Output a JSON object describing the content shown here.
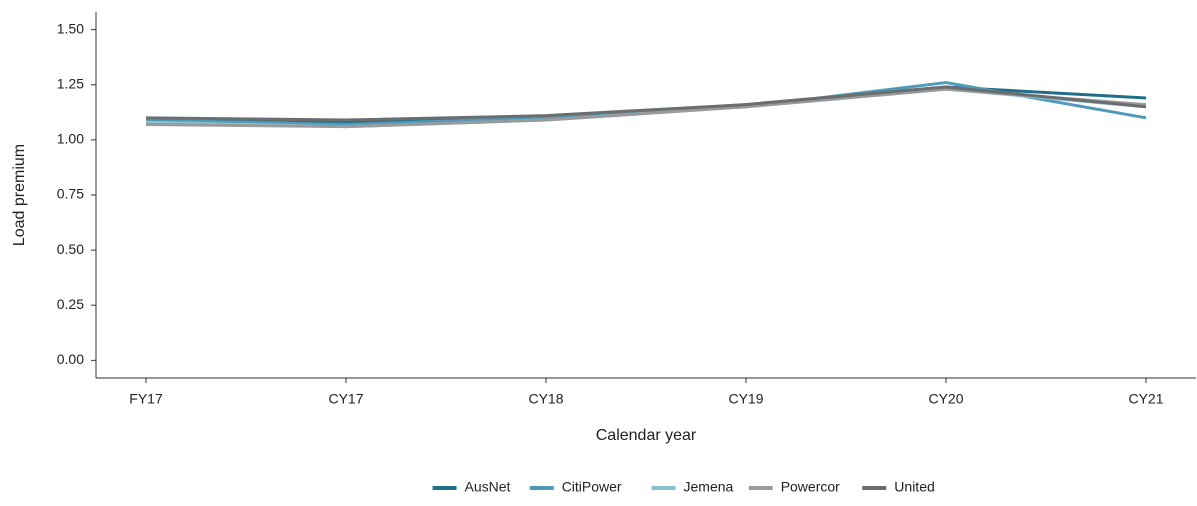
{
  "chart_data": {
    "type": "line",
    "x_label": "Calendar year",
    "y_label": "Load premium",
    "categories": [
      "FY17",
      "CY17",
      "CY18",
      "CY19",
      "CY20",
      "CY21"
    ],
    "series": [
      {
        "name": "AusNet",
        "color": "#1f6f8b",
        "values": [
          1.09,
          1.08,
          1.1,
          1.16,
          1.24,
          1.19
        ]
      },
      {
        "name": "CitiPower",
        "color": "#4e9ab8",
        "values": [
          1.09,
          1.07,
          1.1,
          1.15,
          1.26,
          1.1
        ]
      },
      {
        "name": "Jemena",
        "color": "#8cbfd0",
        "values": [
          1.08,
          1.06,
          1.09,
          1.15,
          1.23,
          1.15
        ]
      },
      {
        "name": "Powercor",
        "color": "#9a9a9a",
        "values": [
          1.07,
          1.06,
          1.09,
          1.15,
          1.23,
          1.16
        ]
      },
      {
        "name": "United",
        "color": "#6b6e70",
        "values": [
          1.1,
          1.09,
          1.11,
          1.16,
          1.24,
          1.15
        ]
      }
    ],
    "ylim": [
      -0.08,
      1.58
    ],
    "yticks": [
      {
        "value": 0,
        "label": "0.00"
      },
      {
        "value": 0.25,
        "label": "0.25"
      },
      {
        "value": 0.5,
        "label": "0.50"
      },
      {
        "value": 0.75,
        "label": "0.75"
      },
      {
        "value": 1,
        "label": "1.00"
      },
      {
        "value": 1.25,
        "label": "1.25"
      },
      {
        "value": 1.5,
        "label": "1.50"
      }
    ],
    "legend": "bottom"
  }
}
